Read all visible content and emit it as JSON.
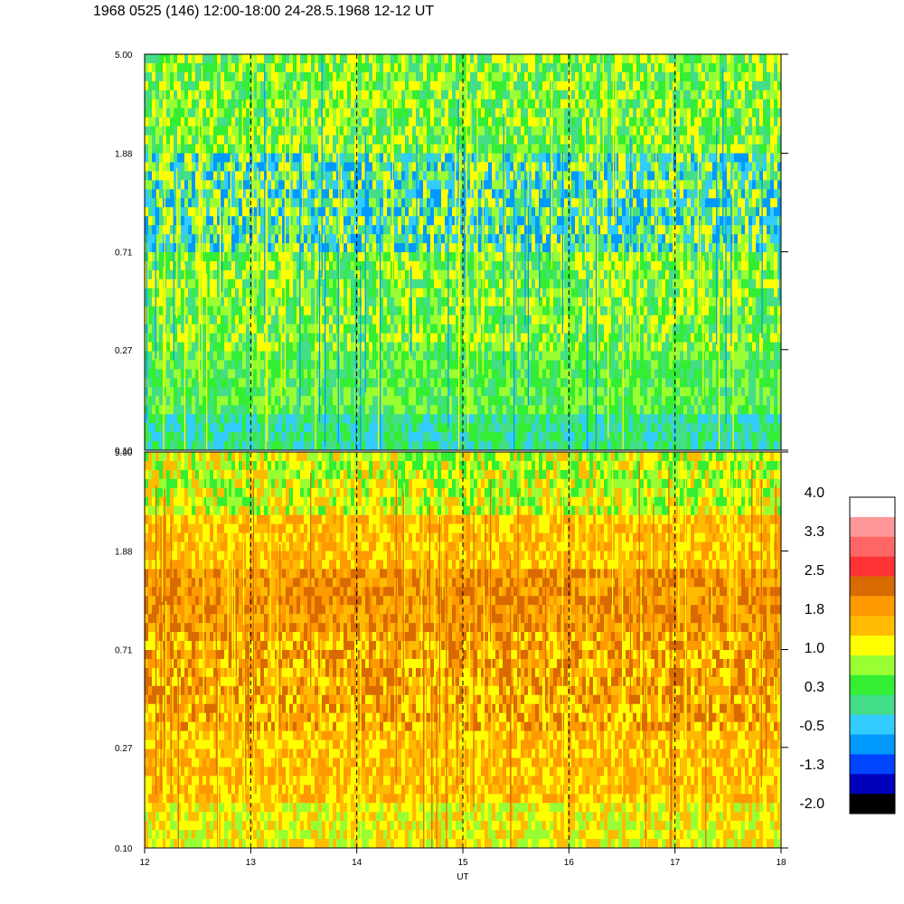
{
  "title": "1968 0525 (146) 12:00-18:00 24-28.5.1968  12-12 UT",
  "chart_data": [
    {
      "type": "heatmap",
      "panel": "top",
      "x_range": [
        12,
        18
      ],
      "yticks": [
        "5.00",
        "1.88",
        "0.71",
        "0.27",
        "0.10"
      ],
      "y_scale": "log",
      "y_range": [
        0.1,
        5.0
      ],
      "dominant_levels": [
        "0.3",
        "-0.5",
        "1.0"
      ]
    },
    {
      "type": "heatmap",
      "panel": "bottom",
      "x_range": [
        12,
        18
      ],
      "yticks": [
        "5.00",
        "1.88",
        "0.71",
        "0.27",
        "0.10"
      ],
      "y_scale": "log",
      "y_range": [
        0.1,
        5.0
      ],
      "dominant_levels": [
        "1.8",
        "1.0",
        "2.5"
      ]
    }
  ],
  "xaxis": {
    "label": "UT",
    "ticks": [
      "12",
      "13",
      "14",
      "15",
      "16",
      "17",
      "18"
    ],
    "dashed_gridlines_at": [
      13,
      14,
      15,
      16,
      17
    ]
  },
  "colorbar": {
    "labels": [
      "4.0",
      "3.3",
      "2.5",
      "1.8",
      "1.0",
      "0.3",
      "-0.5",
      "-1.3",
      "-2.0"
    ],
    "colors": [
      "#ffffff",
      "#ff9999",
      "#ff6666",
      "#ff3333",
      "#d96a00",
      "#ff9900",
      "#ffbb00",
      "#ffff00",
      "#99ff33",
      "#33ee33",
      "#44dd88",
      "#33ccff",
      "#0099ff",
      "#0044ff",
      "#0000bb",
      "#000000"
    ]
  }
}
